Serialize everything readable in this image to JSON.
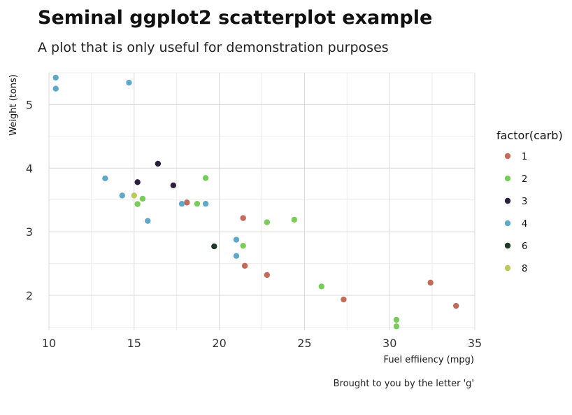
{
  "chart_data": {
    "type": "scatter",
    "title": "Seminal ggplot2 scatterplot example",
    "subtitle": "A plot that is only useful for demonstration purposes",
    "caption": "Brought to you by the letter 'g'",
    "xlabel": "Fuel effiiency (mpg)",
    "ylabel": "Weight (tons)",
    "xlim": [
      10,
      35
    ],
    "ylim": [
      1.45,
      5.5
    ],
    "x_ticks": [
      10,
      15,
      20,
      25,
      30,
      35
    ],
    "y_ticks": [
      2,
      3,
      4,
      5
    ],
    "x_tick_labels": [
      "10",
      "15",
      "20",
      "25",
      "30",
      "35"
    ],
    "y_tick_labels": [
      "2",
      "3",
      "4",
      "5"
    ],
    "grid": true,
    "legend": {
      "title": "factor(carb)",
      "placement": "right"
    },
    "series": [
      {
        "name": "1",
        "color": "#c26b58",
        "points": [
          [
            21.4,
            3.215
          ],
          [
            18.1,
            3.46
          ],
          [
            22.8,
            2.32
          ],
          [
            32.4,
            2.2
          ],
          [
            33.9,
            1.835
          ],
          [
            21.5,
            2.465
          ],
          [
            27.3,
            1.935
          ]
        ]
      },
      {
        "name": "2",
        "color": "#7acc5a",
        "points": [
          [
            18.7,
            3.44
          ],
          [
            24.4,
            3.19
          ],
          [
            22.8,
            3.15
          ],
          [
            19.2,
            3.845
          ],
          [
            15.5,
            3.52
          ],
          [
            15.2,
            3.435
          ],
          [
            30.4,
            1.615
          ],
          [
            26.0,
            2.14
          ],
          [
            30.4,
            1.513
          ],
          [
            21.4,
            2.78
          ]
        ]
      },
      {
        "name": "3",
        "color": "#2b1f3d",
        "points": [
          [
            16.4,
            4.07
          ],
          [
            17.3,
            3.73
          ],
          [
            15.2,
            3.78
          ]
        ]
      },
      {
        "name": "4",
        "color": "#5fa8c8",
        "points": [
          [
            21.0,
            2.62
          ],
          [
            21.0,
            2.875
          ],
          [
            14.3,
            3.57
          ],
          [
            19.2,
            3.44
          ],
          [
            17.8,
            3.44
          ],
          [
            10.4,
            5.25
          ],
          [
            10.4,
            5.424
          ],
          [
            14.7,
            5.345
          ],
          [
            13.3,
            3.84
          ],
          [
            15.8,
            3.17
          ]
        ]
      },
      {
        "name": "6",
        "color": "#1f3a26",
        "points": [
          [
            19.7,
            2.77
          ]
        ]
      },
      {
        "name": "8",
        "color": "#bcc85a",
        "points": [
          [
            15.0,
            3.57
          ]
        ]
      }
    ]
  }
}
